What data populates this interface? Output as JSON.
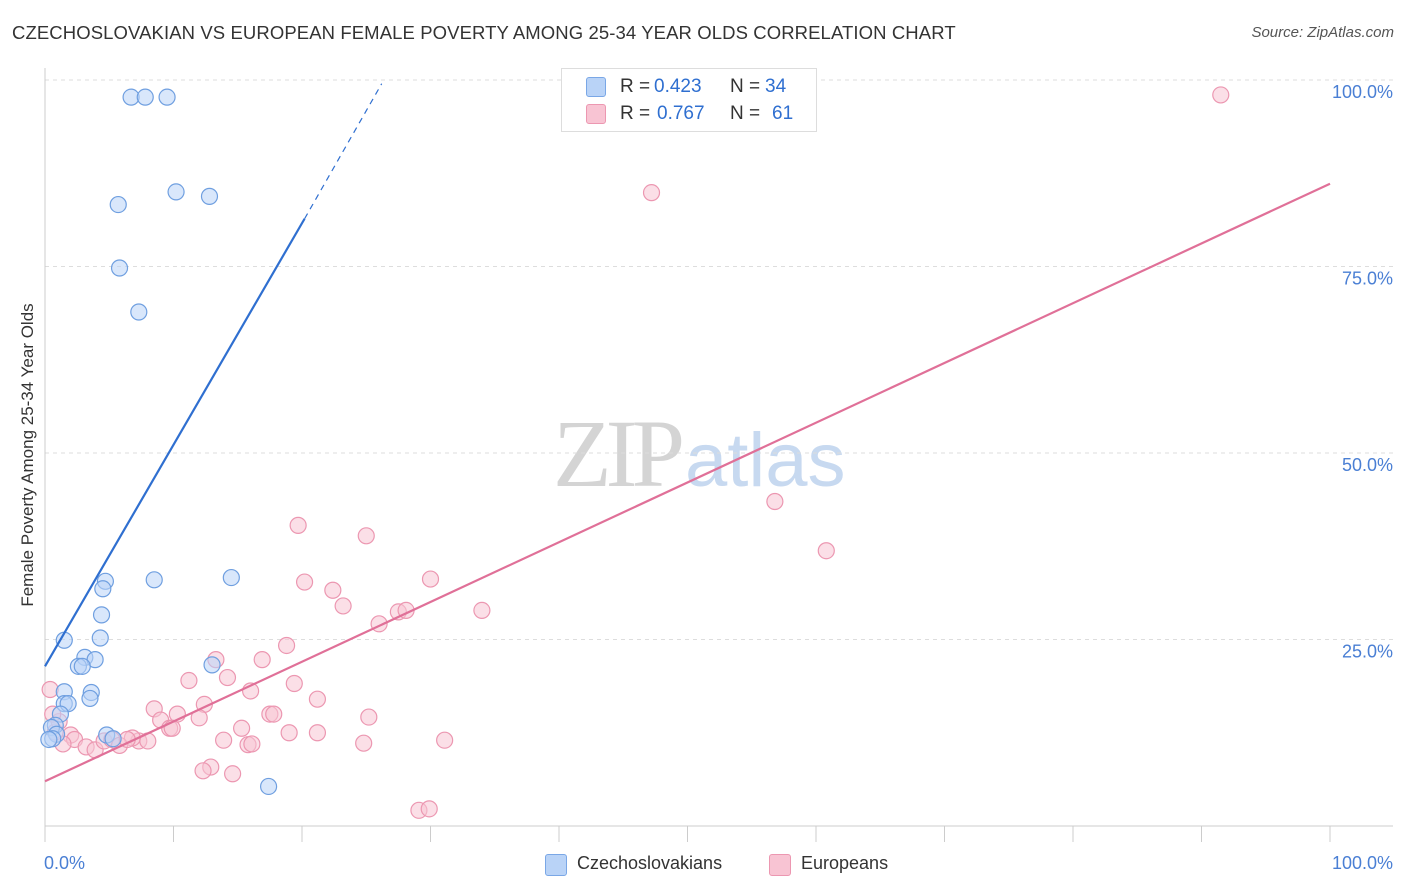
{
  "title": "CZECHOSLOVAKIAN VS EUROPEAN FEMALE POVERTY AMONG 25-34 YEAR OLDS CORRELATION CHART",
  "source": "Source: ZipAtlas.com",
  "watermark": {
    "zip": "ZIP",
    "atlas": "atlas"
  },
  "legend": {
    "rows": [
      {
        "r_label": "R =",
        "r_value": "0.423",
        "n_label": "N =",
        "n_value": "34"
      },
      {
        "r_label": "R =",
        "r_value": "0.767",
        "n_label": "N =",
        "n_value": "61"
      }
    ]
  },
  "bottom_legend": [
    "Czechoslovakians",
    "Europeans"
  ],
  "colors": {
    "blue_fill": "#b9d3f7",
    "blue_stroke": "#6f9fe0",
    "blue_line": "#2f6fd0",
    "pink_fill": "#f8c4d3",
    "pink_stroke": "#ec97b1",
    "pink_line": "#e07098",
    "axis_text": "#4a7fd4",
    "grid": "#dddddd"
  },
  "chart_data": {
    "type": "scatter",
    "title": "CZECHOSLOVAKIAN VS EUROPEAN FEMALE POVERTY AMONG 25-34 YEAR OLDS CORRELATION CHART",
    "xlabel": "",
    "ylabel": "Female Poverty Among 25-34 Year Olds",
    "xlim": [
      0,
      100
    ],
    "ylim": [
      0,
      100
    ],
    "x_tick_labels": [
      "0.0%",
      "100.0%"
    ],
    "y_tick_labels": [
      "25.0%",
      "50.0%",
      "75.0%",
      "100.0%"
    ],
    "y_tick_values": [
      25,
      50,
      75,
      100
    ],
    "series": [
      {
        "name": "Czechoslovakians",
        "r": 0.423,
        "n": 34,
        "trend": {
          "x0": 0,
          "y0": 21.4,
          "x1": 20.2,
          "y1": 81.4,
          "dash_to_x": 26.2,
          "dash_to_y": 99.5
        },
        "points": [
          [
            6.7,
            97.7
          ],
          [
            7.8,
            97.7
          ],
          [
            9.5,
            97.7
          ],
          [
            5.7,
            83.3
          ],
          [
            10.2,
            85.0
          ],
          [
            12.8,
            84.4
          ],
          [
            5.8,
            74.8
          ],
          [
            7.3,
            68.9
          ],
          [
            4.7,
            32.8
          ],
          [
            8.5,
            33.0
          ],
          [
            14.5,
            33.3
          ],
          [
            4.5,
            31.8
          ],
          [
            4.4,
            28.3
          ],
          [
            4.3,
            25.2
          ],
          [
            1.5,
            24.9
          ],
          [
            3.1,
            22.6
          ],
          [
            3.9,
            22.3
          ],
          [
            2.6,
            21.4
          ],
          [
            2.9,
            21.4
          ],
          [
            13.0,
            21.6
          ],
          [
            1.5,
            18.0
          ],
          [
            3.6,
            17.9
          ],
          [
            1.5,
            16.4
          ],
          [
            1.8,
            16.4
          ],
          [
            3.5,
            17.1
          ],
          [
            1.2,
            15.0
          ],
          [
            0.8,
            13.5
          ],
          [
            0.5,
            13.2
          ],
          [
            0.9,
            12.3
          ],
          [
            0.6,
            11.7
          ],
          [
            0.3,
            11.6
          ],
          [
            4.8,
            12.2
          ],
          [
            5.3,
            11.7
          ],
          [
            17.4,
            5.3
          ]
        ]
      },
      {
        "name": "Europeans",
        "r": 0.767,
        "n": 61,
        "trend": {
          "x0": 0,
          "y0": 6.0,
          "x1": 100,
          "y1": 86.1
        },
        "points": [
          [
            91.5,
            98.0
          ],
          [
            47.2,
            84.9
          ],
          [
            56.8,
            43.5
          ],
          [
            60.8,
            36.9
          ],
          [
            19.7,
            40.3
          ],
          [
            25.0,
            38.9
          ],
          [
            20.2,
            32.7
          ],
          [
            22.4,
            31.6
          ],
          [
            30.0,
            33.1
          ],
          [
            23.2,
            29.5
          ],
          [
            26.0,
            27.1
          ],
          [
            27.5,
            28.7
          ],
          [
            28.1,
            28.9
          ],
          [
            34.0,
            28.9
          ],
          [
            18.8,
            24.2
          ],
          [
            13.3,
            22.3
          ],
          [
            16.9,
            22.3
          ],
          [
            11.2,
            19.5
          ],
          [
            14.2,
            19.9
          ],
          [
            19.4,
            19.1
          ],
          [
            16.0,
            18.1
          ],
          [
            21.2,
            17.0
          ],
          [
            12.4,
            16.3
          ],
          [
            8.5,
            15.7
          ],
          [
            10.3,
            15.0
          ],
          [
            17.5,
            15.0
          ],
          [
            17.8,
            15.0
          ],
          [
            9.0,
            14.2
          ],
          [
            12.0,
            14.5
          ],
          [
            25.2,
            14.6
          ],
          [
            15.3,
            13.1
          ],
          [
            9.7,
            13.1
          ],
          [
            9.9,
            13.1
          ],
          [
            21.2,
            12.5
          ],
          [
            15.8,
            10.9
          ],
          [
            7.3,
            11.4
          ],
          [
            6.8,
            11.8
          ],
          [
            8.0,
            11.4
          ],
          [
            2.0,
            12.2
          ],
          [
            2.3,
            11.6
          ],
          [
            3.2,
            10.6
          ],
          [
            3.9,
            10.2
          ],
          [
            4.6,
            11.4
          ],
          [
            5.2,
            11.6
          ],
          [
            5.8,
            10.8
          ],
          [
            6.4,
            11.6
          ],
          [
            1.4,
            11.0
          ],
          [
            0.8,
            12.6
          ],
          [
            1.1,
            14.0
          ],
          [
            0.6,
            15.0
          ],
          [
            0.4,
            18.3
          ],
          [
            13.9,
            11.5
          ],
          [
            16.1,
            11.0
          ],
          [
            24.8,
            11.1
          ],
          [
            31.1,
            11.5
          ],
          [
            12.9,
            7.9
          ],
          [
            12.3,
            7.4
          ],
          [
            14.6,
            7.0
          ],
          [
            29.1,
            2.1
          ],
          [
            29.9,
            2.3
          ],
          [
            19.0,
            12.5
          ]
        ]
      }
    ]
  }
}
